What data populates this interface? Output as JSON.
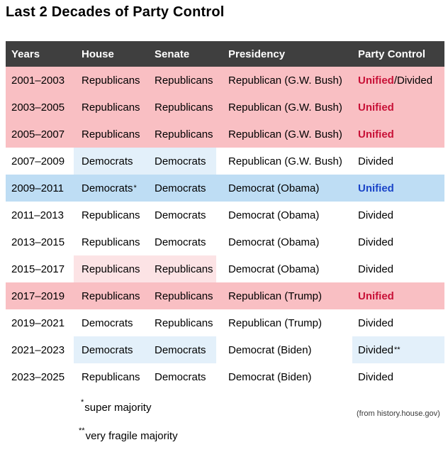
{
  "title": "Last 2 Decades of Party Control",
  "source": "(from history.house.gov)",
  "footnotes": [
    {
      "marker": "*",
      "text": "super majority"
    },
    {
      "marker": "**",
      "text": "very fragile majority"
    }
  ],
  "colors": {
    "header_bg": "#3f3f3f",
    "header_text": "#ffffff",
    "pink_row": "#f9bfc3",
    "pink_cell": "#fce3e5",
    "blue_row": "#beddf4",
    "blue_cell": "#e3f0fa",
    "red_text": "#c81137",
    "blue_text": "#1b45c8"
  },
  "table": {
    "columns": [
      "Years",
      "House",
      "Senate",
      "Presidency",
      "Party Control"
    ],
    "rows": [
      {
        "years": "2001–2003",
        "house": "Republicans",
        "senate": "Republicans",
        "presidency": "Republican (G.W. Bush)",
        "control": "Unified",
        "control_suffix": "/Divided",
        "control_style": "red",
        "row_highlight": "pink",
        "house_senate_highlight": "none",
        "control_cell_highlight": "none"
      },
      {
        "years": "2003–2005",
        "house": "Republicans",
        "senate": "Republicans",
        "presidency": "Republican (G.W. Bush)",
        "control": "Unified",
        "control_style": "red",
        "row_highlight": "pink",
        "house_senate_highlight": "none",
        "control_cell_highlight": "none"
      },
      {
        "years": "2005–2007",
        "house": "Republicans",
        "senate": "Republicans",
        "presidency": "Republican (G.W. Bush)",
        "control": "Unified",
        "control_style": "red",
        "row_highlight": "pink",
        "house_senate_highlight": "none",
        "control_cell_highlight": "none"
      },
      {
        "years": "2007–2009",
        "house": "Democrats",
        "senate": "Democrats",
        "presidency": "Republican (G.W. Bush)",
        "control": "Divided",
        "control_style": "plain",
        "row_highlight": "none",
        "house_senate_highlight": "blue",
        "control_cell_highlight": "none"
      },
      {
        "years": "2009–2011",
        "house": "Democrats",
        "house_sup": "*",
        "senate": "Democrats",
        "presidency": "Democrat (Obama)",
        "control": "Unified",
        "control_style": "blue",
        "row_highlight": "blue",
        "house_senate_highlight": "none",
        "control_cell_highlight": "none"
      },
      {
        "years": "2011–2013",
        "house": "Republicans",
        "senate": "Democrats",
        "presidency": "Democrat (Obama)",
        "control": "Divided",
        "control_style": "plain",
        "row_highlight": "none",
        "house_senate_highlight": "none",
        "control_cell_highlight": "none"
      },
      {
        "years": "2013–2015",
        "house": "Republicans",
        "senate": "Democrats",
        "presidency": "Democrat (Obama)",
        "control": "Divided",
        "control_style": "plain",
        "row_highlight": "none",
        "house_senate_highlight": "none",
        "control_cell_highlight": "none"
      },
      {
        "years": "2015–2017",
        "house": "Republicans",
        "senate": "Republicans",
        "presidency": "Democrat (Obama)",
        "control": "Divided",
        "control_style": "plain",
        "row_highlight": "none",
        "house_senate_highlight": "pink",
        "control_cell_highlight": "none"
      },
      {
        "years": "2017–2019",
        "house": "Republicans",
        "senate": "Republicans",
        "presidency": "Republican (Trump)",
        "control": "Unified",
        "control_style": "red",
        "row_highlight": "pink",
        "house_senate_highlight": "none",
        "control_cell_highlight": "none"
      },
      {
        "years": "2019–2021",
        "house": "Democrats",
        "senate": "Republicans",
        "presidency": "Republican (Trump)",
        "control": "Divided",
        "control_style": "plain",
        "row_highlight": "none",
        "house_senate_highlight": "none",
        "control_cell_highlight": "none"
      },
      {
        "years": "2021–2023",
        "house": "Democrats",
        "senate": "Democrats",
        "presidency": "Democrat (Biden)",
        "control": "Divided",
        "control_sup": "**",
        "control_style": "plain",
        "row_highlight": "none",
        "house_senate_highlight": "blue",
        "control_cell_highlight": "blue"
      },
      {
        "years": "2023–2025",
        "house": "Republicans",
        "senate": "Democrats",
        "presidency": "Democrat (Biden)",
        "control": "Divided",
        "control_style": "plain",
        "row_highlight": "none",
        "house_senate_highlight": "none",
        "control_cell_highlight": "none"
      }
    ]
  },
  "chart_data": {
    "type": "table",
    "title": "Last 2 Decades of Party Control",
    "columns": [
      "Years",
      "House",
      "Senate",
      "Presidency",
      "Party Control"
    ],
    "rows": [
      [
        "2001–2003",
        "Republicans",
        "Republicans",
        "Republican (G.W. Bush)",
        "Unified/Divided"
      ],
      [
        "2003–2005",
        "Republicans",
        "Republicans",
        "Republican (G.W. Bush)",
        "Unified"
      ],
      [
        "2005–2007",
        "Republicans",
        "Republicans",
        "Republican (G.W. Bush)",
        "Unified"
      ],
      [
        "2007–2009",
        "Democrats",
        "Democrats",
        "Republican (G.W. Bush)",
        "Divided"
      ],
      [
        "2009–2011",
        "Democrats*",
        "Democrats",
        "Democrat (Obama)",
        "Unified"
      ],
      [
        "2011–2013",
        "Republicans",
        "Democrats",
        "Democrat (Obama)",
        "Divided"
      ],
      [
        "2013–2015",
        "Republicans",
        "Democrats",
        "Democrat (Obama)",
        "Divided"
      ],
      [
        "2015–2017",
        "Republicans",
        "Republicans",
        "Democrat (Obama)",
        "Divided"
      ],
      [
        "2017–2019",
        "Republicans",
        "Republicans",
        "Republican (Trump)",
        "Unified"
      ],
      [
        "2019–2021",
        "Democrats",
        "Republicans",
        "Republican (Trump)",
        "Divided"
      ],
      [
        "2021–2023",
        "Democrats",
        "Democrats",
        "Democrat (Biden)",
        "Divided**"
      ],
      [
        "2023–2025",
        "Republicans",
        "Democrats",
        "Democrat (Biden)",
        "Divided"
      ]
    ],
    "annotations": [
      "* super majority",
      "** very fragile majority",
      "(from history.house.gov)"
    ]
  }
}
